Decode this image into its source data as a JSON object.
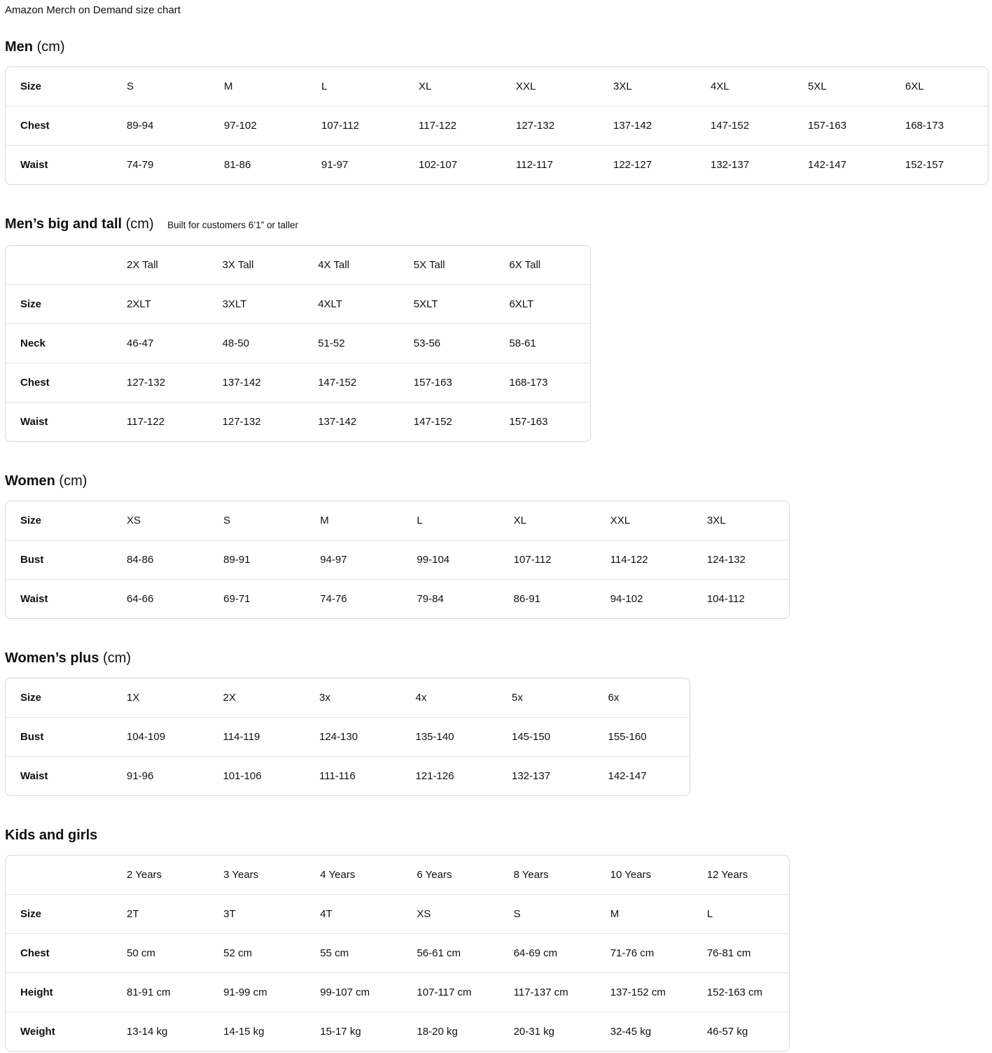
{
  "page_title": "Amazon Merch on Demand size chart",
  "colors": {
    "text": "#0f1111",
    "table_border": "#d5d9d9",
    "row_divider": "#e3e6e6"
  },
  "sections": [
    {
      "heading": "Men",
      "unit": "(cm)",
      "subtitle": "",
      "rows": [
        {
          "label": "Size",
          "values": [
            "S",
            "M",
            "L",
            "XL",
            "XXL",
            "3XL",
            "4XL",
            "5XL",
            "6XL"
          ]
        },
        {
          "label": "Chest",
          "values": [
            "89-94",
            "97-102",
            "107-112",
            "117-122",
            "127-132",
            "137-142",
            "147-152",
            "157-163",
            "168-173"
          ]
        },
        {
          "label": "Waist",
          "values": [
            "74-79",
            "81-86",
            "91-97",
            "102-107",
            "112-117",
            "122-127",
            "132-137",
            "142-147",
            "152-157"
          ]
        }
      ]
    },
    {
      "heading": "Men’s big and tall",
      "unit": "(cm)",
      "subtitle": "Built for customers 6’1” or taller",
      "rows": [
        {
          "label": "",
          "values": [
            "2X Tall",
            "3X Tall",
            "4X Tall",
            "5X Tall",
            "6X Tall"
          ]
        },
        {
          "label": "Size",
          "values": [
            "2XLT",
            "3XLT",
            "4XLT",
            "5XLT",
            "6XLT"
          ]
        },
        {
          "label": "Neck",
          "values": [
            "46-47",
            "48-50",
            "51-52",
            "53-56",
            "58-61"
          ]
        },
        {
          "label": "Chest",
          "values": [
            "127-132",
            "137-142",
            "147-152",
            "157-163",
            "168-173"
          ]
        },
        {
          "label": "Waist",
          "values": [
            "117-122",
            "127-132",
            "137-142",
            "147-152",
            "157-163"
          ]
        }
      ]
    },
    {
      "heading": "Women",
      "unit": "(cm)",
      "subtitle": "",
      "rows": [
        {
          "label": "Size",
          "values": [
            "XS",
            "S",
            "M",
            "L",
            "XL",
            "XXL",
            "3XL"
          ]
        },
        {
          "label": "Bust",
          "values": [
            "84-86",
            "89-91",
            "94-97",
            "99-104",
            "107-112",
            "114-122",
            "124-132"
          ]
        },
        {
          "label": "Waist",
          "values": [
            "64-66",
            "69-71",
            "74-76",
            "79-84",
            "86-91",
            "94-102",
            "104-112"
          ]
        }
      ]
    },
    {
      "heading": "Women’s plus",
      "unit": "(cm)",
      "subtitle": "",
      "rows": [
        {
          "label": "Size",
          "values": [
            "1X",
            "2X",
            "3x",
            "4x",
            "5x",
            "6x"
          ]
        },
        {
          "label": "Bust",
          "values": [
            "104-109",
            "114-119",
            "124-130",
            "135-140",
            "145-150",
            "155-160"
          ]
        },
        {
          "label": "Waist",
          "values": [
            "91-96",
            "101-106",
            "111-116",
            "121-126",
            "132-137",
            "142-147"
          ]
        }
      ]
    },
    {
      "heading": "Kids and girls",
      "unit": "",
      "subtitle": "",
      "rows": [
        {
          "label": "",
          "values": [
            "2 Years",
            "3 Years",
            "4 Years",
            "6 Years",
            "8 Years",
            "10 Years",
            "12 Years"
          ]
        },
        {
          "label": "Size",
          "values": [
            "2T",
            "3T",
            "4T",
            "XS",
            "S",
            "M",
            "L"
          ]
        },
        {
          "label": "Chest",
          "values": [
            "50 cm",
            "52 cm",
            "55 cm",
            "56-61 cm",
            "64-69 cm",
            "71-76 cm",
            "76-81 cm"
          ]
        },
        {
          "label": "Height",
          "values": [
            "81-91 cm",
            "91-99 cm",
            "99-107 cm",
            "107-117 cm",
            "117-137 cm",
            "137-152 cm",
            "152-163 cm"
          ]
        },
        {
          "label": "Weight",
          "values": [
            "13-14 kg",
            "14-15 kg",
            "15-17 kg",
            "18-20 kg",
            "20-31 kg",
            "32-45 kg",
            "46-57 kg"
          ]
        }
      ]
    }
  ]
}
